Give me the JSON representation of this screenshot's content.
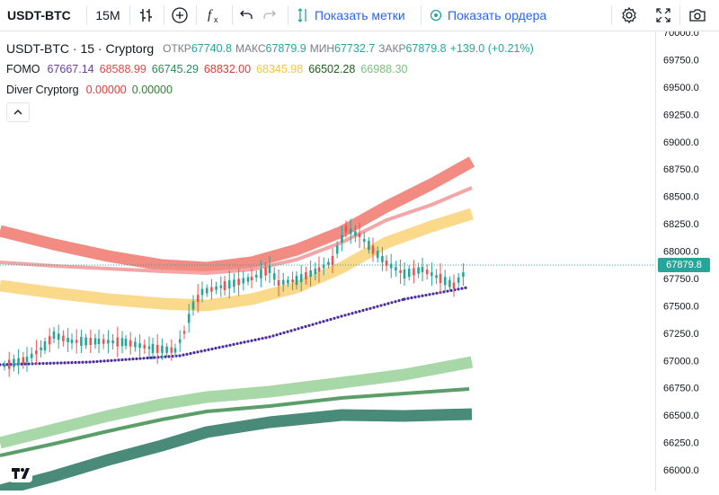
{
  "toolbar": {
    "symbol": "USDT-BTC",
    "interval": "15M",
    "show_marks": "Показать метки",
    "show_orders": "Показать ордера",
    "icons": [
      "bar-style-icon",
      "indicators-add-icon",
      "formula-icon",
      "undo-icon",
      "redo-icon",
      "settings-gear-icon",
      "fullscreen-icon",
      "camera-icon"
    ]
  },
  "legend": {
    "main": {
      "title": "USDT-BTC · 15 · Cryptorg",
      "open_label": "ОТКР",
      "open": "67740.8",
      "high_label": "МАКС",
      "high": "67879.9",
      "low_label": "МИН",
      "low": "67732.7",
      "close_label": "ЗАКР",
      "close": "67879.8",
      "change": "+139.0 (+0.21%)"
    },
    "fomo": {
      "name": "FOMO",
      "values": [
        "67667.14",
        "68588.99",
        "66745.29",
        "68832.00",
        "68345.98",
        "66502.28",
        "66988.30"
      ],
      "colors": [
        "#6a3e9e",
        "#e04848",
        "#2e8b57",
        "#e53935",
        "#f4c542",
        "#1b5e20",
        "#7cbf7c"
      ]
    },
    "diver": {
      "name": "Diver Cryptorg",
      "v1": "0.00000",
      "v2": "0.00000",
      "colors": [
        "#e53935",
        "#2e7d32"
      ]
    }
  },
  "price_axis": {
    "ticks": [
      "70000.0",
      "69750.0",
      "69500.0",
      "69250.0",
      "69000.0",
      "68750.0",
      "68500.0",
      "68250.0",
      "68000.0",
      "67750.0",
      "67500.0",
      "67250.0",
      "67000.0",
      "66750.0",
      "66500.0",
      "66250.0",
      "66000.0"
    ],
    "last_price": "67879.8",
    "last_price_color": "#26a69a"
  },
  "colors": {
    "up": "#26a69a",
    "down": "#ef5350",
    "band_red": "#f28b82",
    "band_yellow": "#fbd98a",
    "band_green_light": "#a8d8a8",
    "band_green_dark": "#4a8a78",
    "dots": "#4b2aa0"
  }
}
